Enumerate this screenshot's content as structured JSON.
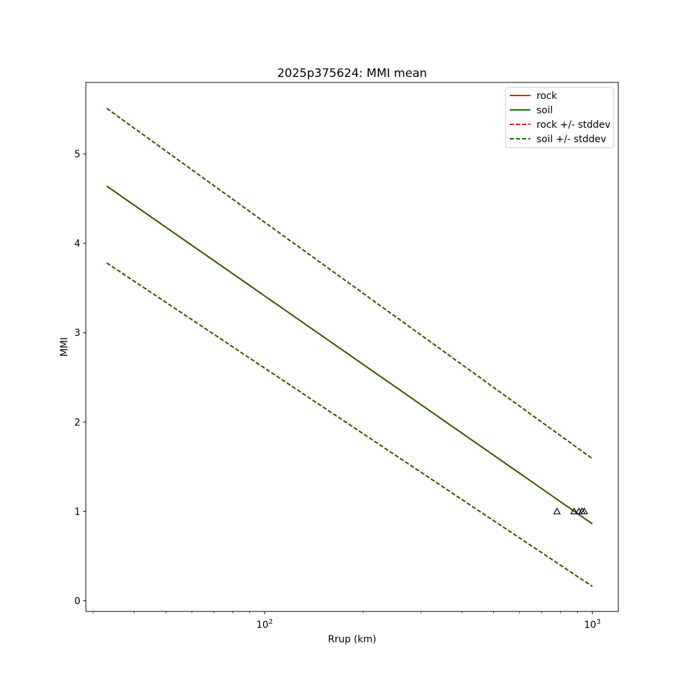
{
  "chart_data": {
    "type": "line",
    "title": "2025p375624: MMI mean",
    "xlabel": "Rrup (km)",
    "ylabel": "MMI",
    "xscale": "log",
    "xlim": [
      28.5,
      1200
    ],
    "ylim": [
      -0.12,
      5.8
    ],
    "x_ticks": [
      {
        "value": 100,
        "base": "10",
        "exp": "2"
      },
      {
        "value": 1000,
        "base": "10",
        "exp": "3"
      }
    ],
    "y_ticks": [
      0,
      1,
      2,
      3,
      4,
      5
    ],
    "grid": false,
    "legend_placement": "top-right",
    "colors": {
      "rock": "#ff0000",
      "soil": "#007700",
      "overlap": "#2f6f00",
      "axes": "#000000"
    },
    "series": [
      {
        "name": "rock",
        "style": "solid",
        "color": "#ff0000",
        "x": [
          33,
          1000
        ],
        "y": [
          4.64,
          0.86
        ]
      },
      {
        "name": "soil",
        "style": "solid",
        "color": "#007700",
        "x": [
          33,
          1000
        ],
        "y": [
          4.64,
          0.86
        ]
      },
      {
        "name": "rock +/- stddev",
        "style": "dashed",
        "color": "#ff0000",
        "x": [
          33,
          1000
        ],
        "y_upper": [
          5.51,
          1.59
        ],
        "y_lower": [
          3.78,
          0.16
        ]
      },
      {
        "name": "soil +/- stddev",
        "style": "dashed",
        "color": "#007700",
        "x": [
          33,
          1000
        ],
        "y_upper": [
          5.51,
          1.59
        ],
        "y_lower": [
          3.78,
          0.16
        ]
      }
    ],
    "observations": {
      "marker": "triangle",
      "x": [
        780,
        880,
        910,
        930,
        945
      ],
      "y": [
        1,
        1,
        1,
        1,
        1
      ]
    }
  }
}
